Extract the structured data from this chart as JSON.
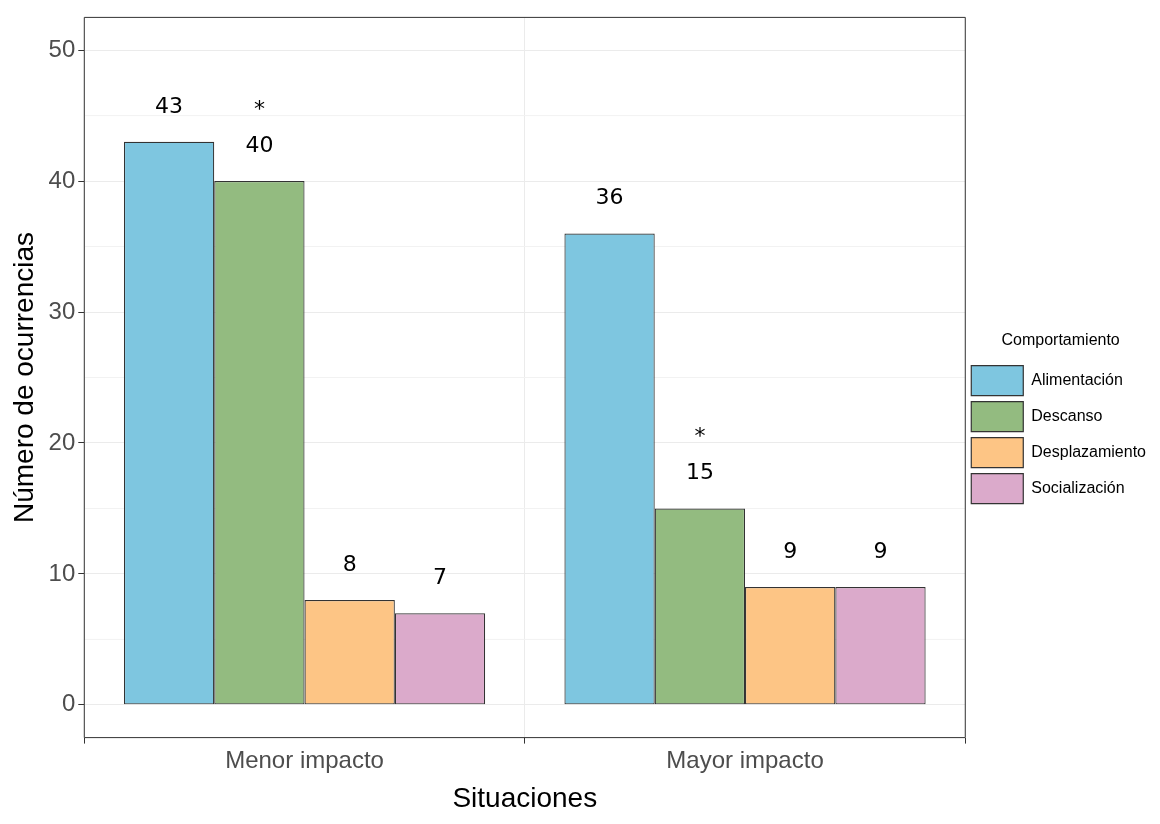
{
  "chart_data": {
    "type": "bar",
    "xlabel": "Situaciones",
    "ylabel": "Número de ocurrencias",
    "legend_title": "Comportamiento",
    "categories": [
      "Menor impacto",
      "Mayor impacto"
    ],
    "series": [
      {
        "name": "Alimentación",
        "color": "#7ec6e0",
        "values": [
          43,
          36
        ],
        "value_labels": [
          "43",
          "36"
        ]
      },
      {
        "name": "Descanso",
        "color": "#93bb80",
        "values": [
          40,
          15
        ],
        "value_labels": [
          "*\n40",
          "*\n15"
        ]
      },
      {
        "name": "Desplazamiento",
        "color": "#fdc585",
        "values": [
          8,
          9
        ],
        "value_labels": [
          "8",
          "9"
        ]
      },
      {
        "name": "Socialización",
        "color": "#dbaacb",
        "values": [
          7,
          9
        ],
        "value_labels": [
          "7",
          "9"
        ]
      }
    ],
    "ylim": [
      -2.5,
      52.5
    ],
    "yticks": [
      0,
      10,
      20,
      30,
      40,
      50
    ],
    "grid": true,
    "legend": "right"
  }
}
